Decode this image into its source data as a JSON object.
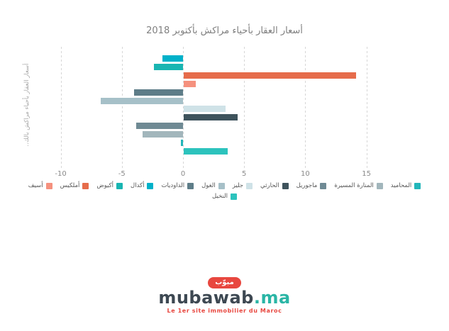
{
  "title": "أسعار العقار بأحياء مراكش بأكتوبر 2018",
  "y_axis_title": "..أسعار العقار بأحياء مراكش بالك",
  "chart_data": {
    "type": "bar",
    "orientation": "horizontal",
    "title": "أسعار العقار بأحياء مراكش بأكتوبر 2018",
    "xlabel": "",
    "ylabel": "..أسعار العقار بأحياء مراكش بالك",
    "xlim": [
      -10,
      15
    ],
    "x_ticks": [
      -10,
      -5,
      0,
      5,
      10,
      15
    ],
    "grid": "dashed-vertical",
    "legend_position": "bottom",
    "categories": [
      "أكدال",
      "أكيوض",
      "أملكيس",
      "أسيف",
      "الداوديات",
      "الغول",
      "جليز",
      "الحارثي",
      "ماجوريل",
      "المنارة المسيرة",
      "المحاميد",
      "النخيل"
    ],
    "values": [
      -1.7,
      -2.4,
      14.1,
      1.0,
      -4.0,
      -6.7,
      3.4,
      4.4,
      -3.8,
      -3.3,
      -0.15,
      3.6
    ],
    "colors": [
      "#00b1c9",
      "#19b5b2",
      "#e66c4b",
      "#f5917e",
      "#5e7d88",
      "#a6c0c8",
      "#cfe2e7",
      "#3e535c",
      "#6f8a94",
      "#a2b6bc",
      "#22b6ba",
      "#2cc3bd"
    ]
  },
  "legend": {
    "rows": [
      [
        {
          "label": "أسيف",
          "color": "#f5917e"
        },
        {
          "label": "أملكيس",
          "color": "#e66c4b"
        },
        {
          "label": "أكيوض",
          "color": "#19b5b2"
        },
        {
          "label": "أكدال",
          "color": "#00b1c9"
        },
        {
          "label": "الداوديات",
          "color": "#5e7d88"
        },
        {
          "label": "الغول",
          "color": "#a6c0c8"
        },
        {
          "label": "جليز",
          "color": "#cfe2e7"
        },
        {
          "label": "الحارثي",
          "color": "#3e535c"
        },
        {
          "label": "ماجوريل",
          "color": "#6f8a94"
        },
        {
          "label": "المنارة المسيرة",
          "color": "#a2b6bc"
        },
        {
          "label": "المحاميد",
          "color": "#22b6ba"
        }
      ],
      [
        {
          "label": "النخيل",
          "color": "#2cc3bd"
        }
      ]
    ]
  },
  "logo": {
    "badge_text": "مبوّب",
    "brand": "mubawab",
    "tld": ".ma",
    "tagline": "Le 1er site immobilier du Maroc",
    "badge_color": "#e8473f",
    "brand_color": "#3d4852",
    "tld_color": "#2ab5a5"
  }
}
